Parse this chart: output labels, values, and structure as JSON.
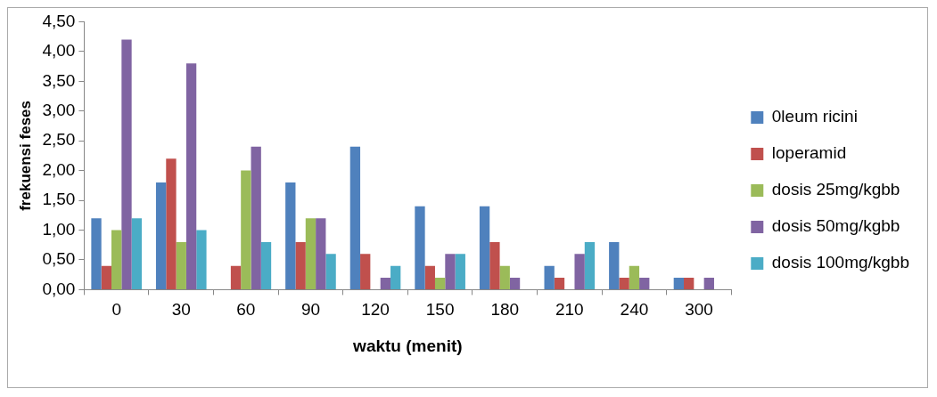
{
  "chart_data": {
    "type": "bar",
    "xlabel": "waktu (menit)",
    "ylabel": "frekuensi feses",
    "categories": [
      "0",
      "30",
      "60",
      "90",
      "120",
      "150",
      "180",
      "210",
      "240",
      "300"
    ],
    "series": [
      {
        "name": "0leum ricini",
        "color": "#4f81bd",
        "values": [
          1.2,
          1.8,
          null,
          1.8,
          2.4,
          1.4,
          1.4,
          0.4,
          0.8,
          0.2
        ]
      },
      {
        "name": "loperamid",
        "color": "#c0504d",
        "values": [
          0.4,
          2.2,
          0.4,
          0.8,
          0.6,
          0.4,
          0.8,
          0.2,
          0.2,
          0.2
        ]
      },
      {
        "name": "dosis 25mg/kgbb",
        "color": "#9bbb59",
        "values": [
          1.0,
          0.8,
          2.0,
          1.2,
          null,
          0.2,
          0.4,
          null,
          0.4,
          null
        ]
      },
      {
        "name": "dosis 50mg/kgbb",
        "color": "#8064a2",
        "values": [
          4.2,
          3.8,
          2.4,
          1.2,
          0.2,
          0.6,
          0.2,
          0.6,
          0.2,
          0.2
        ]
      },
      {
        "name": "dosis 100mg/kgbb",
        "color": "#4bacc6",
        "values": [
          1.2,
          1.0,
          0.8,
          0.6,
          0.4,
          0.6,
          null,
          0.8,
          null,
          null
        ]
      }
    ],
    "ylim": [
      0,
      4.5
    ],
    "yticks": [
      {
        "value": 0,
        "label": "0,00"
      },
      {
        "value": 0.5,
        "label": "0,50"
      },
      {
        "value": 1,
        "label": "1,00"
      },
      {
        "value": 1.5,
        "label": "1,50"
      },
      {
        "value": 2,
        "label": "2,00"
      },
      {
        "value": 2.5,
        "label": "2,50"
      },
      {
        "value": 3,
        "label": "3,00"
      },
      {
        "value": 3.5,
        "label": "3,50"
      },
      {
        "value": 4,
        "label": "4,00"
      },
      {
        "value": 4.5,
        "label": "4,50"
      }
    ],
    "grid": false,
    "legend": "right"
  }
}
